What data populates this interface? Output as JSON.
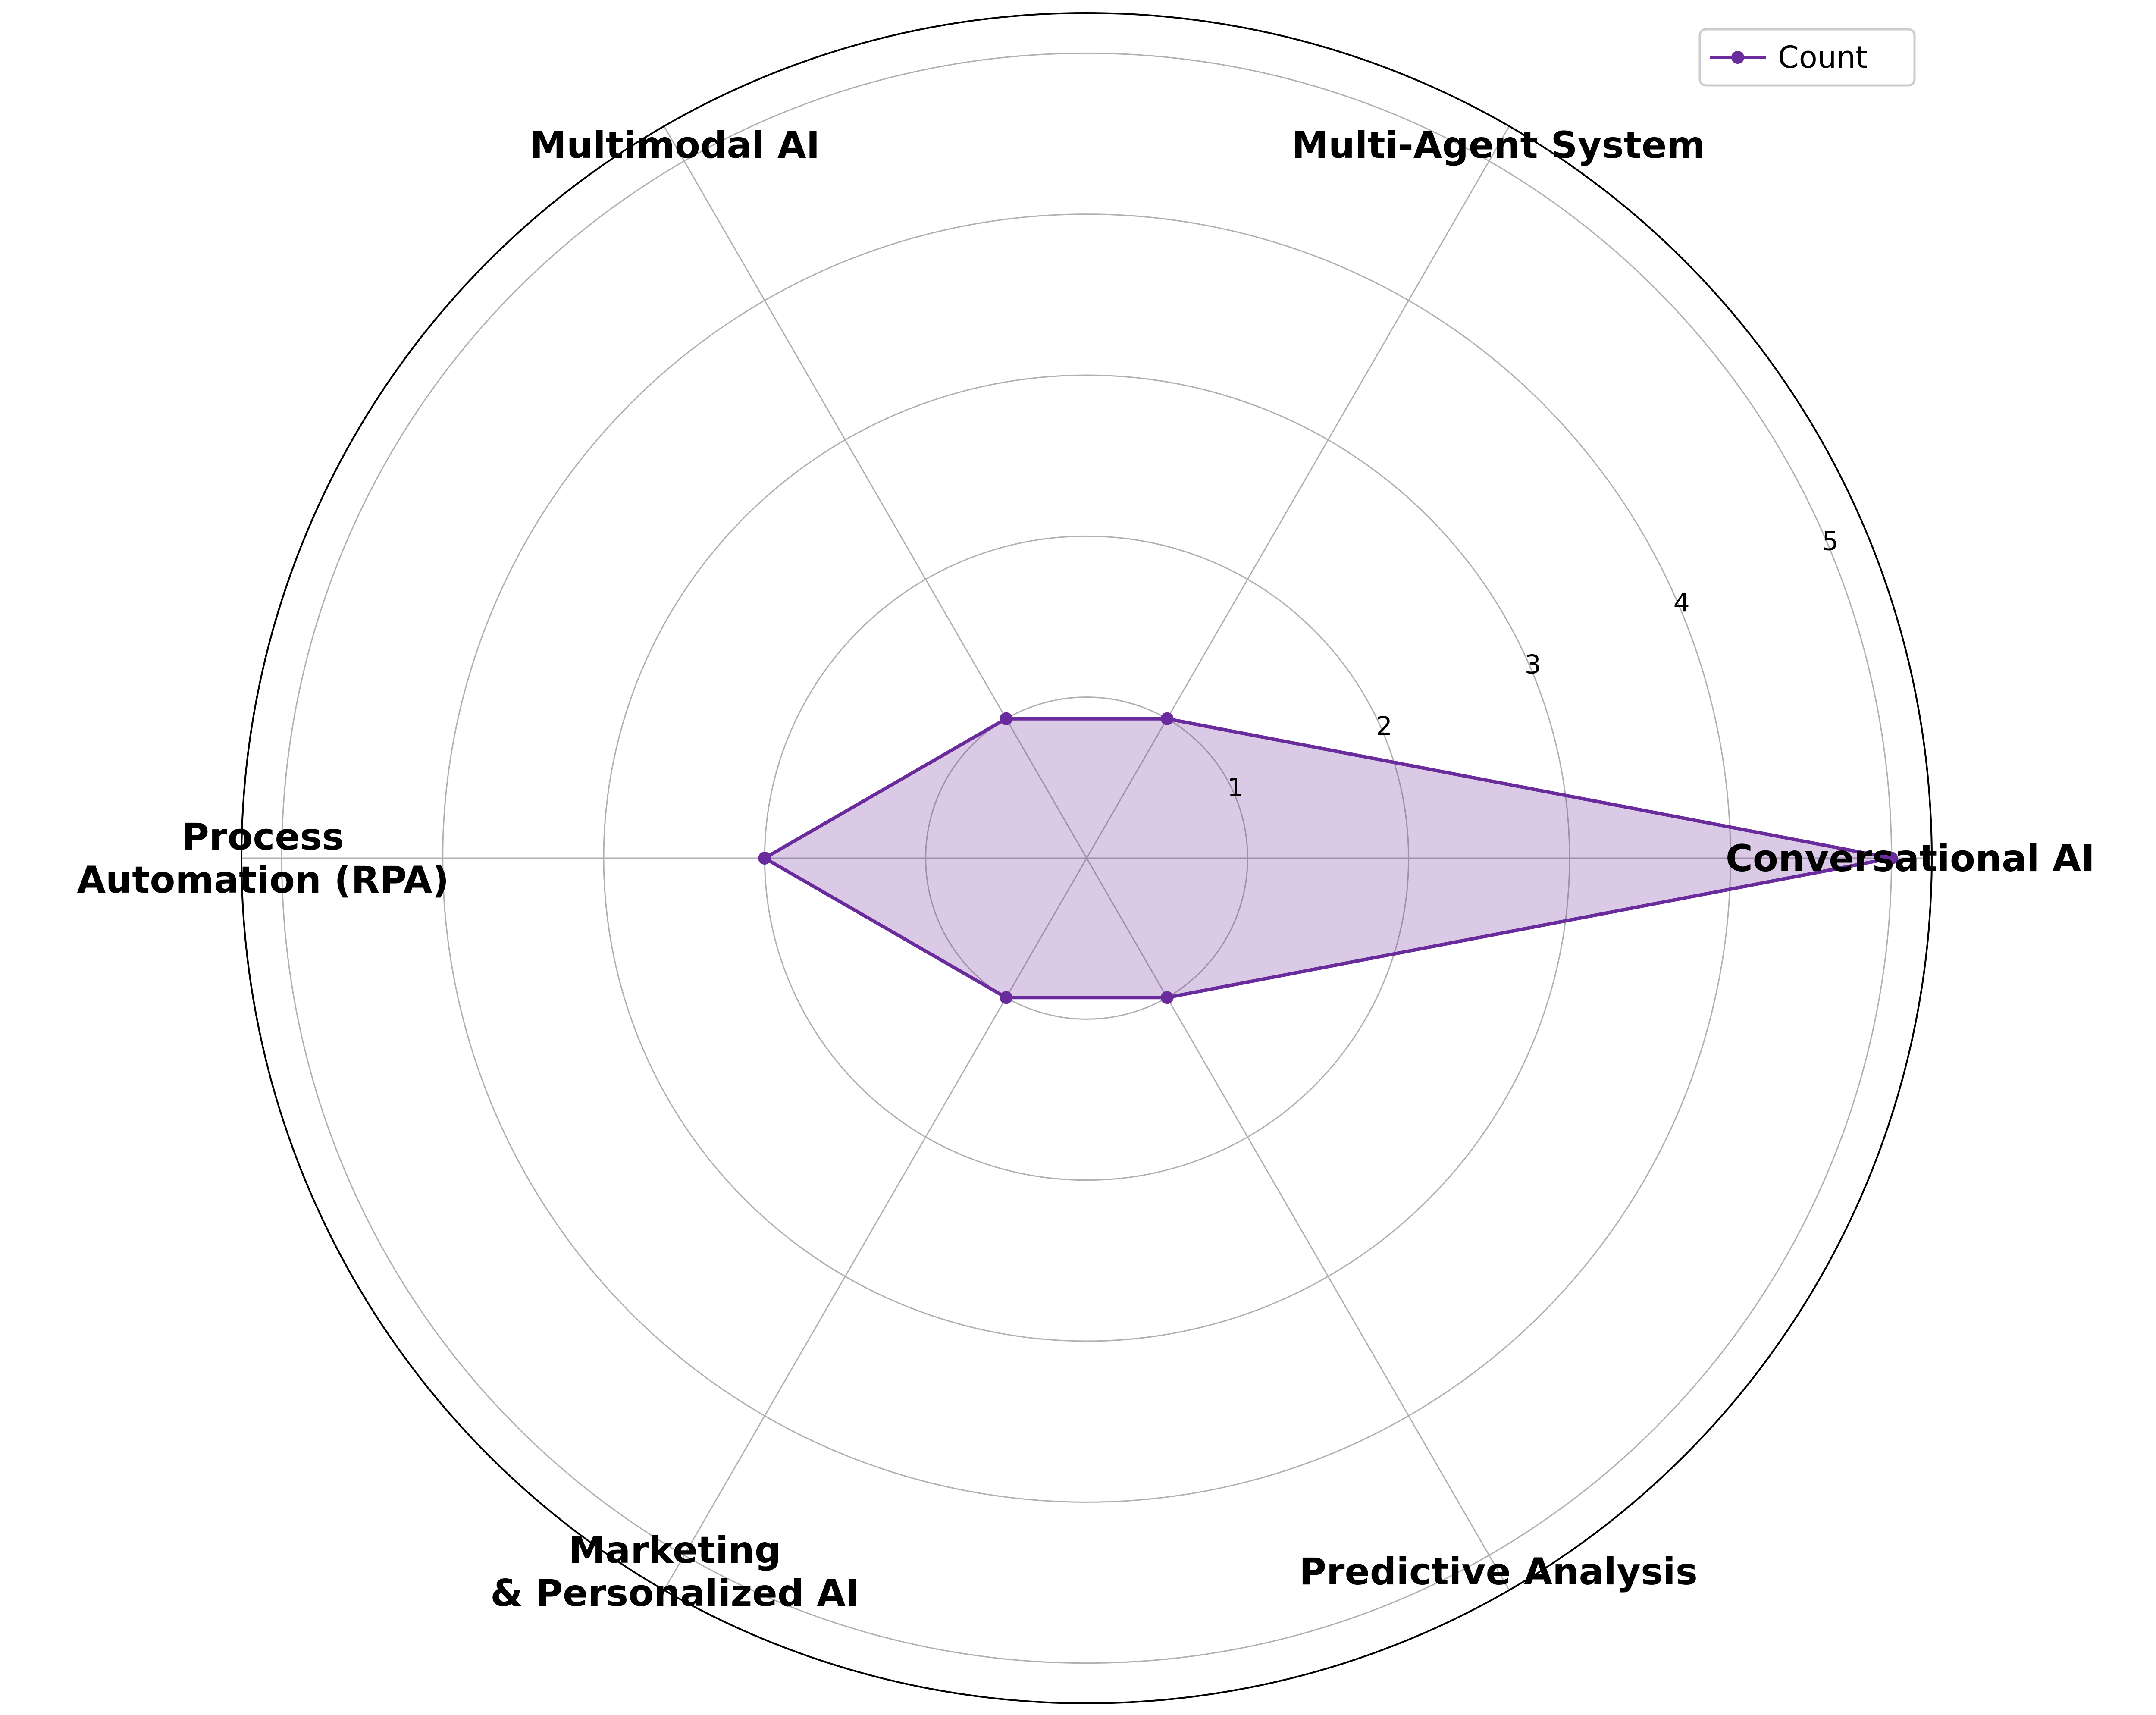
{
  "chart_data": {
    "type": "radar",
    "categories": [
      "Conversational AI",
      "Multi-Agent System",
      "Multimodal AI",
      "Process\nAutomation (RPA)",
      "Marketing\n& Personalized AI",
      "Predictive Analysis"
    ],
    "series": [
      {
        "name": "Count",
        "values": [
          5,
          1,
          1,
          2,
          1,
          1
        ]
      }
    ],
    "rlim": [
      0,
      5.25
    ],
    "radial_ticks": [
      1,
      2,
      3,
      4,
      5
    ],
    "radial_tick_labels": [
      "1",
      "2",
      "3",
      "4",
      "5"
    ],
    "grid": true,
    "legend_position": "top-right",
    "colors": {
      "line": "#6a2c9c",
      "fill": "#6a2c9c",
      "grid": "#b0b0b0",
      "frame": "#000000"
    }
  }
}
